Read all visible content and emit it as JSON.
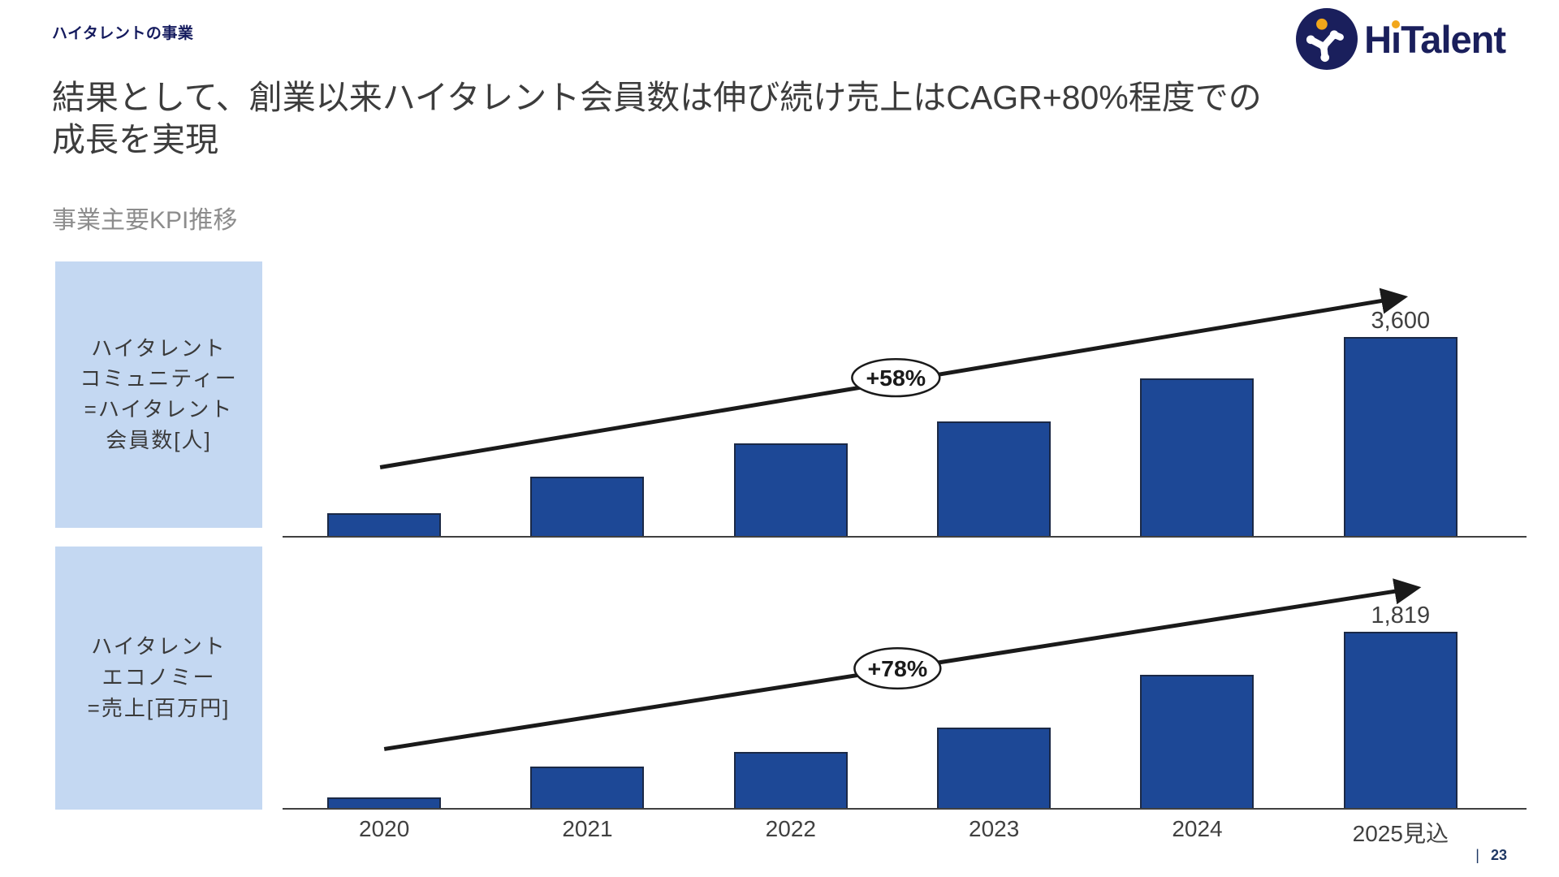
{
  "page": {
    "eyebrow": "ハイタレントの事業",
    "title_lines": [
      "結果として、創業以来ハイタレント会員数は伸び続け売上はCAGR+80%程度での",
      "成長を実現"
    ],
    "subtitle": "事業主要KPI推移",
    "footer_divider": "|",
    "page_number": "23"
  },
  "logo": {
    "text": "HiTalent",
    "navy": "#1A1F5C",
    "gold": "#F2A71B"
  },
  "colors": {
    "bar_fill": "#1D4896",
    "bar_border": "#1B2946",
    "label_box_fill": "#C4D8F2",
    "axis": "#404040",
    "arrow": "#1A1A1A",
    "header_navy": "#151B5E"
  },
  "chart_data": [
    {
      "type": "bar",
      "row_label_lines": [
        "ハイタレント",
        "コミュニティー",
        "=ハイタレント",
        "会員数[人]"
      ],
      "categories": [
        "2020",
        "2021",
        "2022",
        "2023",
        "2024",
        "2025見込"
      ],
      "values": [
        410,
        1070,
        1670,
        2070,
        2850,
        3600
      ],
      "values_note": "only final bar labeled; others estimated from bar heights",
      "bar_value_labels": [
        "",
        "",
        "",
        "",
        "",
        "3,600"
      ],
      "growth_label": "+58%",
      "ylim": [
        0,
        3600
      ],
      "legend": "none",
      "grid": false
    },
    {
      "type": "bar",
      "row_label_lines": [
        "ハイタレント",
        "エコノミー",
        "=売上[百万円]"
      ],
      "categories": [
        "2020",
        "2021",
        "2022",
        "2023",
        "2024",
        "2025見込"
      ],
      "values": [
        110,
        430,
        580,
        830,
        1375,
        1819
      ],
      "values_note": "only final bar labeled; others estimated from bar heights",
      "bar_value_labels": [
        "",
        "",
        "",
        "",
        "",
        "1,819"
      ],
      "growth_label": "+78%",
      "ylim": [
        0,
        1819
      ],
      "legend": "none",
      "grid": false
    }
  ]
}
